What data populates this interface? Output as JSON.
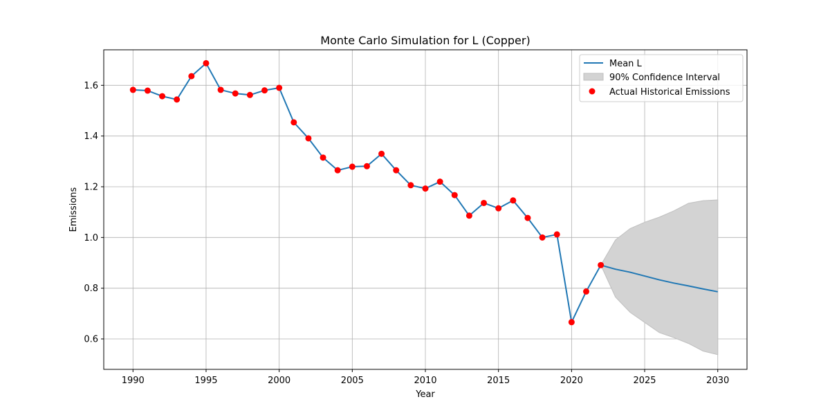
{
  "chart_data": {
    "type": "line",
    "title": "Monte Carlo Simulation for L (Copper)",
    "xlabel": "Year",
    "ylabel": "Emissions",
    "xlim": [
      1988,
      2032
    ],
    "ylim": [
      0.48,
      1.74
    ],
    "xticks": [
      1990,
      1995,
      2000,
      2005,
      2010,
      2015,
      2020,
      2025,
      2030
    ],
    "yticks": [
      0.6,
      0.8,
      1.0,
      1.2,
      1.4,
      1.6
    ],
    "xtick_labels": [
      "1990",
      "1995",
      "2000",
      "2005",
      "2010",
      "2015",
      "2020",
      "2025",
      "2030"
    ],
    "ytick_labels": [
      "0.6",
      "0.8",
      "1.0",
      "1.2",
      "1.4",
      "1.6"
    ],
    "grid": true,
    "legend_position": "top-right",
    "colors": {
      "mean_line": "#1f77b4",
      "confidence_fill": "#d3d3d3",
      "confidence_edge": "#bfbfbf",
      "historical_points": "#ff0000",
      "grid": "#b0b0b0"
    },
    "series": [
      {
        "name": "Mean L",
        "kind": "line",
        "x": [
          1990,
          1991,
          1992,
          1993,
          1994,
          1995,
          1996,
          1997,
          1998,
          1999,
          2000,
          2001,
          2002,
          2003,
          2004,
          2005,
          2006,
          2007,
          2008,
          2009,
          2010,
          2011,
          2012,
          2013,
          2014,
          2015,
          2016,
          2017,
          2018,
          2019,
          2020,
          2021,
          2022,
          2023,
          2024,
          2025,
          2026,
          2027,
          2028,
          2029,
          2030
        ],
        "y": [
          1.582,
          1.579,
          1.557,
          1.544,
          1.636,
          1.687,
          1.582,
          1.568,
          1.562,
          1.58,
          1.59,
          1.454,
          1.391,
          1.315,
          1.265,
          1.279,
          1.281,
          1.33,
          1.265,
          1.206,
          1.193,
          1.22,
          1.167,
          1.086,
          1.136,
          1.115,
          1.146,
          1.077,
          1.0,
          1.012,
          0.666,
          0.787,
          0.891,
          0.875,
          0.863,
          0.848,
          0.833,
          0.82,
          0.809,
          0.797,
          0.786
        ]
      },
      {
        "name": "90% Confidence Interval",
        "kind": "band",
        "x": [
          2022,
          2023,
          2024,
          2025,
          2026,
          2027,
          2028,
          2029,
          2030
        ],
        "lower": [
          0.891,
          0.765,
          0.705,
          0.665,
          0.625,
          0.605,
          0.582,
          0.552,
          0.538
        ],
        "upper": [
          0.891,
          0.99,
          1.035,
          1.06,
          1.08,
          1.105,
          1.135,
          1.145,
          1.148
        ]
      },
      {
        "name": "Actual Historical Emissions",
        "kind": "scatter",
        "x": [
          1990,
          1991,
          1992,
          1993,
          1994,
          1995,
          1996,
          1997,
          1998,
          1999,
          2000,
          2001,
          2002,
          2003,
          2004,
          2005,
          2006,
          2007,
          2008,
          2009,
          2010,
          2011,
          2012,
          2013,
          2014,
          2015,
          2016,
          2017,
          2018,
          2019,
          2020,
          2021,
          2022
        ],
        "y": [
          1.582,
          1.579,
          1.557,
          1.544,
          1.636,
          1.687,
          1.582,
          1.568,
          1.562,
          1.58,
          1.59,
          1.454,
          1.391,
          1.315,
          1.265,
          1.279,
          1.281,
          1.33,
          1.265,
          1.206,
          1.193,
          1.22,
          1.167,
          1.086,
          1.136,
          1.115,
          1.146,
          1.077,
          1.0,
          1.012,
          0.666,
          0.787,
          0.891
        ]
      }
    ]
  }
}
